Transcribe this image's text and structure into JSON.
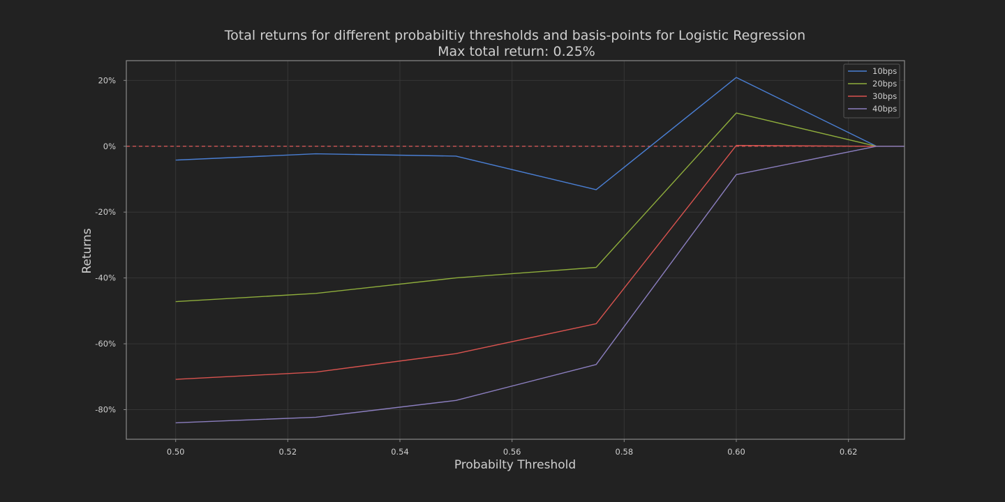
{
  "chart_data": {
    "type": "line",
    "title": "Total returns for different probabiltiy thresholds and basis-points for Logistic Regression",
    "subtitle": "Max total return: 0.25%",
    "xlabel": "Probabilty Threshold",
    "ylabel": "Returns",
    "x": [
      0.5,
      0.525,
      0.55,
      0.575,
      0.6,
      0.625,
      0.65
    ],
    "xlim": [
      0.4912,
      0.63
    ],
    "ylim": [
      -89,
      26
    ],
    "x_ticks": [
      0.5,
      0.52,
      0.54,
      0.56,
      0.58,
      0.6,
      0.62
    ],
    "x_tick_labels": [
      "0.50",
      "0.52",
      "0.54",
      "0.56",
      "0.58",
      "0.60",
      "0.62"
    ],
    "y_ticks": [
      20,
      0,
      -20,
      -40,
      -60,
      -80
    ],
    "y_tick_labels": [
      "20%",
      "0%",
      "-20%",
      "-40%",
      "-60%",
      "-80%"
    ],
    "grid": true,
    "legend_position": "top-right",
    "reference_line": {
      "y": 0,
      "style": "dashed",
      "color": "#e05a5a"
    },
    "series": [
      {
        "name": "10bps",
        "color": "#4a7fd4",
        "values": [
          -4.2,
          -2.3,
          -3.0,
          -13.2,
          20.9,
          0.0,
          0.0
        ]
      },
      {
        "name": "20bps",
        "color": "#8fae3c",
        "values": [
          -47.2,
          -44.7,
          -40.0,
          -36.8,
          10.1,
          0.0,
          0.0
        ]
      },
      {
        "name": "30bps",
        "color": "#d9534f",
        "values": [
          -70.8,
          -68.6,
          -63.0,
          -53.9,
          0.25,
          0.0,
          0.0
        ]
      },
      {
        "name": "40bps",
        "color": "#8c7fc0",
        "values": [
          -84.0,
          -82.3,
          -77.2,
          -66.3,
          -8.6,
          0.0,
          0.0
        ]
      }
    ]
  }
}
